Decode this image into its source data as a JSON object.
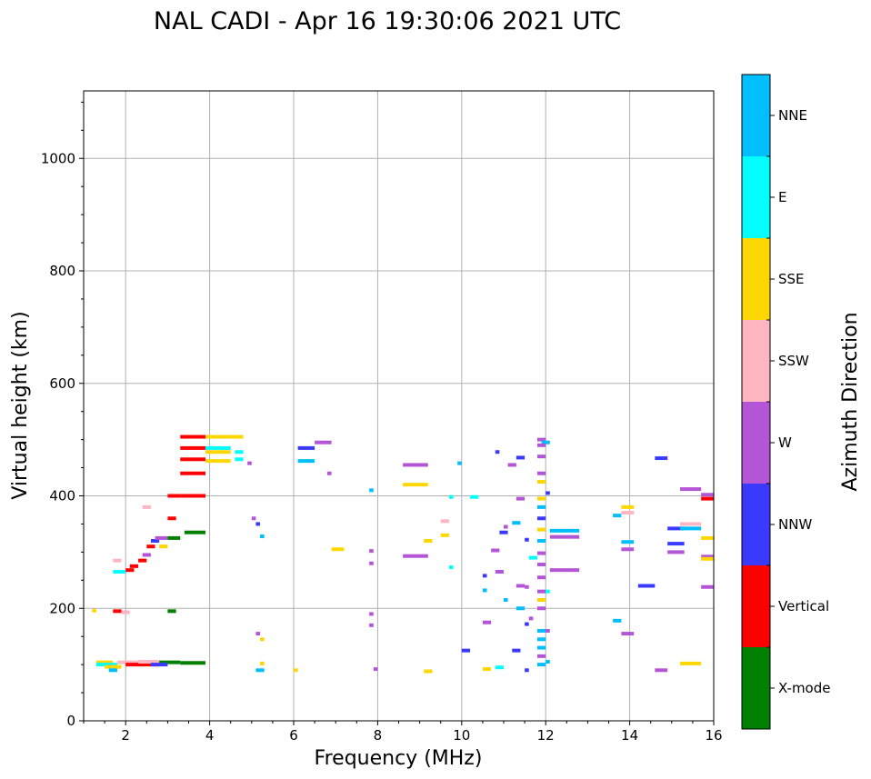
{
  "chart_data": {
    "type": "scatter",
    "title": "NAL CADI - Apr 16 19:30:06 2021 UTC",
    "xlabel": "Frequency (MHz)",
    "ylabel": "Virtual height (km)",
    "xlim": [
      1,
      16
    ],
    "ylim": [
      0,
      1120
    ],
    "xticks": [
      2,
      4,
      6,
      8,
      10,
      12,
      14,
      16
    ],
    "yticks": [
      0,
      200,
      400,
      600,
      800,
      1000
    ],
    "grid": true,
    "colorbar": {
      "label": "Azimuth Direction",
      "categories": [
        {
          "name": "X-mode",
          "color": "#008000"
        },
        {
          "name": "Vertical",
          "color": "#ff0000"
        },
        {
          "name": "NNW",
          "color": "#3a3aff"
        },
        {
          "name": "W",
          "color": "#b455d8"
        },
        {
          "name": "SSW",
          "color": "#ffb6c1"
        },
        {
          "name": "SSE",
          "color": "#ffd700"
        },
        {
          "name": "E",
          "color": "#00ffff"
        },
        {
          "name": "NNE",
          "color": "#00bfff"
        }
      ]
    },
    "echoes": [
      {
        "f": 1.3,
        "f2": 1.7,
        "h": 104,
        "c": "SSE"
      },
      {
        "f": 1.3,
        "f2": 1.8,
        "h": 100,
        "c": "E"
      },
      {
        "f": 1.5,
        "f2": 1.9,
        "h": 96,
        "c": "SSE"
      },
      {
        "f": 1.6,
        "f2": 1.8,
        "h": 90,
        "c": "NNE"
      },
      {
        "f": 1.8,
        "f2": 2.3,
        "h": 104,
        "c": "SSW"
      },
      {
        "f": 2.0,
        "f2": 2.8,
        "h": 100,
        "c": "Vertical"
      },
      {
        "f": 2.3,
        "f2": 2.8,
        "h": 105,
        "c": "SSW"
      },
      {
        "f": 2.8,
        "f2": 3.3,
        "h": 104,
        "c": "X-mode"
      },
      {
        "f": 2.6,
        "f2": 3.0,
        "h": 100,
        "c": "NNW"
      },
      {
        "f": 3.3,
        "f2": 3.9,
        "h": 103,
        "c": "X-mode"
      },
      {
        "f": 1.7,
        "f2": 1.9,
        "h": 195,
        "c": "Vertical"
      },
      {
        "f": 1.9,
        "f2": 2.1,
        "h": 193,
        "c": "SSW"
      },
      {
        "f": 3.0,
        "f2": 3.2,
        "h": 195,
        "c": "X-mode"
      },
      {
        "f": 1.7,
        "f2": 2.0,
        "h": 265,
        "c": "E"
      },
      {
        "f": 1.7,
        "f2": 1.9,
        "h": 285,
        "c": "SSW"
      },
      {
        "f": 2.0,
        "f2": 2.2,
        "h": 268,
        "c": "Vertical"
      },
      {
        "f": 2.1,
        "f2": 2.3,
        "h": 275,
        "c": "Vertical"
      },
      {
        "f": 2.3,
        "f2": 2.5,
        "h": 285,
        "c": "Vertical"
      },
      {
        "f": 2.4,
        "f2": 2.6,
        "h": 295,
        "c": "W"
      },
      {
        "f": 2.5,
        "f2": 2.7,
        "h": 310,
        "c": "Vertical"
      },
      {
        "f": 2.6,
        "f2": 2.8,
        "h": 320,
        "c": "NNW"
      },
      {
        "f": 2.7,
        "f2": 3.0,
        "h": 325,
        "c": "W"
      },
      {
        "f": 2.8,
        "f2": 3.0,
        "h": 310,
        "c": "SSE"
      },
      {
        "f": 3.0,
        "f2": 3.3,
        "h": 325,
        "c": "X-mode"
      },
      {
        "f": 3.4,
        "f2": 3.9,
        "h": 335,
        "c": "X-mode"
      },
      {
        "f": 3.0,
        "f2": 3.2,
        "h": 360,
        "c": "Vertical"
      },
      {
        "f": 2.4,
        "f2": 2.6,
        "h": 380,
        "c": "SSW"
      },
      {
        "f": 3.0,
        "f2": 3.3,
        "h": 400,
        "c": "Vertical"
      },
      {
        "f": 3.3,
        "f2": 3.9,
        "h": 400,
        "c": "Vertical"
      },
      {
        "f": 3.3,
        "f2": 3.9,
        "h": 440,
        "c": "Vertical"
      },
      {
        "f": 3.3,
        "f2": 3.9,
        "h": 465,
        "c": "Vertical"
      },
      {
        "f": 3.3,
        "f2": 3.9,
        "h": 485,
        "c": "Vertical"
      },
      {
        "f": 3.3,
        "f2": 3.9,
        "h": 505,
        "c": "Vertical"
      },
      {
        "f": 3.9,
        "f2": 4.5,
        "h": 505,
        "c": "SSE"
      },
      {
        "f": 3.9,
        "f2": 4.5,
        "h": 485,
        "c": "E"
      },
      {
        "f": 3.9,
        "f2": 4.5,
        "h": 478,
        "c": "SSE"
      },
      {
        "f": 3.9,
        "f2": 4.5,
        "h": 462,
        "c": "SSE"
      },
      {
        "f": 4.5,
        "f2": 4.8,
        "h": 505,
        "c": "SSE"
      },
      {
        "f": 4.6,
        "f2": 4.8,
        "h": 478,
        "c": "E"
      },
      {
        "f": 4.6,
        "f2": 4.8,
        "h": 465,
        "c": "E"
      },
      {
        "f": 6.1,
        "f2": 6.5,
        "h": 485,
        "c": "NNW"
      },
      {
        "f": 6.1,
        "f2": 6.5,
        "h": 462,
        "c": "NNE"
      },
      {
        "f": 6.5,
        "f2": 6.9,
        "h": 495,
        "c": "W"
      },
      {
        "f": 6.8,
        "f2": 6.9,
        "h": 440,
        "c": "W"
      },
      {
        "f": 6.9,
        "f2": 7.2,
        "h": 305,
        "c": "SSE"
      },
      {
        "f": 7.8,
        "f2": 7.9,
        "h": 410,
        "c": "NNE"
      },
      {
        "f": 7.8,
        "f2": 7.9,
        "h": 302,
        "c": "W"
      },
      {
        "f": 7.8,
        "f2": 7.9,
        "h": 280,
        "c": "W"
      },
      {
        "f": 7.8,
        "f2": 7.9,
        "h": 190,
        "c": "W"
      },
      {
        "f": 7.8,
        "f2": 7.9,
        "h": 170,
        "c": "W"
      },
      {
        "f": 7.9,
        "f2": 8.0,
        "h": 92,
        "c": "W"
      },
      {
        "f": 8.6,
        "f2": 9.2,
        "h": 455,
        "c": "W"
      },
      {
        "f": 8.6,
        "f2": 9.2,
        "h": 420,
        "c": "SSE"
      },
      {
        "f": 8.6,
        "f2": 9.2,
        "h": 293,
        "c": "W"
      },
      {
        "f": 9.1,
        "f2": 9.3,
        "h": 320,
        "c": "SSE"
      },
      {
        "f": 9.5,
        "f2": 9.7,
        "h": 355,
        "c": "SSW"
      },
      {
        "f": 9.5,
        "f2": 9.7,
        "h": 330,
        "c": "SSE"
      },
      {
        "f": 9.7,
        "f2": 9.8,
        "h": 273,
        "c": "E"
      },
      {
        "f": 9.7,
        "f2": 9.8,
        "h": 398,
        "c": "E"
      },
      {
        "f": 9.9,
        "f2": 10.0,
        "h": 458,
        "c": "NNE"
      },
      {
        "f": 9.1,
        "f2": 9.3,
        "h": 88,
        "c": "SSE"
      },
      {
        "f": 10.0,
        "f2": 10.2,
        "h": 125,
        "c": "NNW"
      },
      {
        "f": 10.2,
        "f2": 10.4,
        "h": 398,
        "c": "E"
      },
      {
        "f": 10.5,
        "f2": 10.6,
        "h": 258,
        "c": "NNW"
      },
      {
        "f": 10.5,
        "f2": 10.6,
        "h": 232,
        "c": "NNE"
      },
      {
        "f": 10.5,
        "f2": 10.7,
        "h": 175,
        "c": "W"
      },
      {
        "f": 10.5,
        "f2": 10.7,
        "h": 92,
        "c": "SSE"
      },
      {
        "f": 10.7,
        "f2": 10.9,
        "h": 303,
        "c": "W"
      },
      {
        "f": 10.8,
        "f2": 10.9,
        "h": 478,
        "c": "NNW"
      },
      {
        "f": 10.8,
        "f2": 11.0,
        "h": 265,
        "c": "W"
      },
      {
        "f": 10.8,
        "f2": 11.0,
        "h": 95,
        "c": "E"
      },
      {
        "f": 10.9,
        "f2": 11.1,
        "h": 335,
        "c": "NNW"
      },
      {
        "f": 11.0,
        "f2": 11.1,
        "h": 345,
        "c": "W"
      },
      {
        "f": 11.0,
        "f2": 11.1,
        "h": 215,
        "c": "NNE"
      },
      {
        "f": 11.1,
        "f2": 11.3,
        "h": 455,
        "c": "W"
      },
      {
        "f": 11.2,
        "f2": 11.4,
        "h": 352,
        "c": "NNE"
      },
      {
        "f": 11.2,
        "f2": 11.4,
        "h": 125,
        "c": "NNW"
      },
      {
        "f": 11.3,
        "f2": 11.5,
        "h": 468,
        "c": "NNW"
      },
      {
        "f": 11.3,
        "f2": 11.5,
        "h": 395,
        "c": "W"
      },
      {
        "f": 11.3,
        "f2": 11.5,
        "h": 240,
        "c": "W"
      },
      {
        "f": 11.3,
        "f2": 11.5,
        "h": 200,
        "c": "NNE"
      },
      {
        "f": 11.5,
        "f2": 11.6,
        "h": 322,
        "c": "NNW"
      },
      {
        "f": 11.5,
        "f2": 11.6,
        "h": 238,
        "c": "W"
      },
      {
        "f": 11.5,
        "f2": 11.6,
        "h": 172,
        "c": "NNW"
      },
      {
        "f": 11.5,
        "f2": 11.6,
        "h": 90,
        "c": "NNW"
      },
      {
        "f": 11.6,
        "f2": 11.8,
        "h": 290,
        "c": "E"
      },
      {
        "f": 11.6,
        "f2": 11.7,
        "h": 182,
        "c": "W"
      },
      {
        "f": 11.8,
        "f2": 12.0,
        "h": 500,
        "c": "W"
      },
      {
        "f": 11.9,
        "f2": 12.1,
        "h": 495,
        "c": "NNE"
      },
      {
        "f": 11.8,
        "f2": 12.0,
        "h": 490,
        "c": "W"
      },
      {
        "f": 11.8,
        "f2": 12.0,
        "h": 470,
        "c": "W"
      },
      {
        "f": 11.8,
        "f2": 12.0,
        "h": 440,
        "c": "W"
      },
      {
        "f": 11.8,
        "f2": 12.0,
        "h": 425,
        "c": "SSE"
      },
      {
        "f": 11.8,
        "f2": 12.0,
        "h": 395,
        "c": "SSE"
      },
      {
        "f": 11.8,
        "f2": 12.0,
        "h": 380,
        "c": "NNE"
      },
      {
        "f": 11.8,
        "f2": 12.0,
        "h": 360,
        "c": "NNW"
      },
      {
        "f": 11.8,
        "f2": 12.0,
        "h": 340,
        "c": "SSE"
      },
      {
        "f": 11.8,
        "f2": 12.0,
        "h": 320,
        "c": "NNE"
      },
      {
        "f": 11.8,
        "f2": 12.0,
        "h": 298,
        "c": "W"
      },
      {
        "f": 11.8,
        "f2": 12.0,
        "h": 278,
        "c": "W"
      },
      {
        "f": 11.8,
        "f2": 12.0,
        "h": 255,
        "c": "W"
      },
      {
        "f": 11.8,
        "f2": 12.0,
        "h": 230,
        "c": "W"
      },
      {
        "f": 11.8,
        "f2": 12.0,
        "h": 215,
        "c": "SSE"
      },
      {
        "f": 11.8,
        "f2": 12.0,
        "h": 200,
        "c": "W"
      },
      {
        "f": 11.8,
        "f2": 12.0,
        "h": 160,
        "c": "NNE"
      },
      {
        "f": 11.8,
        "f2": 12.0,
        "h": 145,
        "c": "NNE"
      },
      {
        "f": 11.8,
        "f2": 12.0,
        "h": 130,
        "c": "NNE"
      },
      {
        "f": 11.8,
        "f2": 12.0,
        "h": 115,
        "c": "W"
      },
      {
        "f": 11.8,
        "f2": 12.0,
        "h": 100,
        "c": "NNE"
      },
      {
        "f": 12.0,
        "f2": 12.1,
        "h": 405,
        "c": "NNW"
      },
      {
        "f": 12.0,
        "f2": 12.1,
        "h": 230,
        "c": "E"
      },
      {
        "f": 12.0,
        "f2": 12.1,
        "h": 160,
        "c": "W"
      },
      {
        "f": 12.0,
        "f2": 12.1,
        "h": 105,
        "c": "NNE"
      },
      {
        "f": 12.1,
        "f2": 12.8,
        "h": 338,
        "c": "NNE"
      },
      {
        "f": 12.1,
        "f2": 12.8,
        "h": 327,
        "c": "W"
      },
      {
        "f": 12.1,
        "f2": 12.8,
        "h": 268,
        "c": "W"
      },
      {
        "f": 13.6,
        "f2": 13.8,
        "h": 365,
        "c": "NNE"
      },
      {
        "f": 13.6,
        "f2": 13.8,
        "h": 178,
        "c": "NNE"
      },
      {
        "f": 13.8,
        "f2": 14.1,
        "h": 380,
        "c": "SSE"
      },
      {
        "f": 13.8,
        "f2": 14.1,
        "h": 370,
        "c": "SSW"
      },
      {
        "f": 13.8,
        "f2": 14.1,
        "h": 318,
        "c": "NNE"
      },
      {
        "f": 13.8,
        "f2": 14.1,
        "h": 305,
        "c": "W"
      },
      {
        "f": 13.8,
        "f2": 14.1,
        "h": 155,
        "c": "W"
      },
      {
        "f": 14.2,
        "f2": 14.6,
        "h": 240,
        "c": "NNW"
      },
      {
        "f": 14.6,
        "f2": 14.9,
        "h": 467,
        "c": "NNW"
      },
      {
        "f": 14.6,
        "f2": 14.9,
        "h": 90,
        "c": "W"
      },
      {
        "f": 14.9,
        "f2": 15.3,
        "h": 342,
        "c": "NNW"
      },
      {
        "f": 14.9,
        "f2": 15.3,
        "h": 315,
        "c": "NNW"
      },
      {
        "f": 14.9,
        "f2": 15.3,
        "h": 300,
        "c": "W"
      },
      {
        "f": 15.2,
        "f2": 15.7,
        "h": 412,
        "c": "W"
      },
      {
        "f": 15.2,
        "f2": 15.7,
        "h": 350,
        "c": "SSW"
      },
      {
        "f": 15.2,
        "f2": 15.7,
        "h": 342,
        "c": "NNE"
      },
      {
        "f": 15.2,
        "f2": 15.7,
        "h": 102,
        "c": "SSE"
      },
      {
        "f": 15.7,
        "f2": 16.0,
        "h": 402,
        "c": "W"
      },
      {
        "f": 15.7,
        "f2": 16.0,
        "h": 395,
        "c": "Vertical"
      },
      {
        "f": 15.7,
        "f2": 16.0,
        "h": 325,
        "c": "SSE"
      },
      {
        "f": 15.7,
        "f2": 16.0,
        "h": 292,
        "c": "W"
      },
      {
        "f": 15.7,
        "f2": 16.0,
        "h": 288,
        "c": "SSE"
      },
      {
        "f": 15.7,
        "f2": 16.0,
        "h": 238,
        "c": "W"
      },
      {
        "f": 5.1,
        "f2": 5.3,
        "h": 90,
        "c": "NNE"
      },
      {
        "f": 5.1,
        "f2": 5.2,
        "h": 155,
        "c": "W"
      },
      {
        "f": 5.2,
        "f2": 5.3,
        "h": 145,
        "c": "SSE"
      },
      {
        "f": 5.0,
        "f2": 5.1,
        "h": 360,
        "c": "W"
      },
      {
        "f": 5.1,
        "f2": 5.2,
        "h": 350,
        "c": "NNW"
      },
      {
        "f": 5.2,
        "f2": 5.3,
        "h": 328,
        "c": "NNE"
      },
      {
        "f": 4.9,
        "f2": 5.0,
        "h": 458,
        "c": "W"
      },
      {
        "f": 6.0,
        "f2": 6.1,
        "h": 90,
        "c": "SSE"
      },
      {
        "f": 5.2,
        "f2": 5.3,
        "h": 102,
        "c": "SSE"
      },
      {
        "f": 1.2,
        "f2": 1.3,
        "h": 196,
        "c": "SSE"
      }
    ]
  }
}
